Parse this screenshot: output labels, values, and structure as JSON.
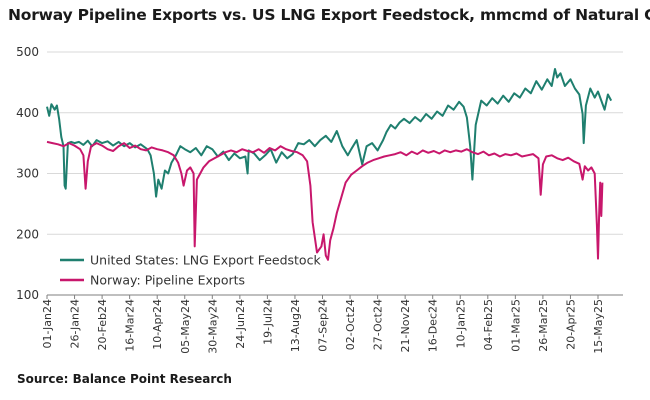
{
  "chart_data": {
    "type": "line",
    "title": "Norway Pipeline Exports vs. US LNG Export Feedstock, mmcmd of Natural Gas",
    "source": "Source: Balance Point Research",
    "xlabel": "",
    "ylabel": "",
    "ylim": [
      100,
      500
    ],
    "yticks": [
      "100",
      "200",
      "300",
      "400",
      "500"
    ],
    "x_range": [
      "2024-01-01",
      "2025-05-27"
    ],
    "xticks": [
      "01-Jan24",
      "26-Jan24",
      "20-Feb24",
      "16-Mar24",
      "10-Apr24",
      "05-May24",
      "30-May24",
      "24-Jun24",
      "19-Jul24",
      "13-Aug24",
      "07-Sep24",
      "02-Oct24",
      "27-Oct24",
      "21-Nov24",
      "16-Dec24",
      "10-Jan25",
      "04-Feb25",
      "01-Mar25",
      "26-Mar25",
      "20-Apr25",
      "15-May25"
    ],
    "grid": true,
    "legend_position": "bottom-left",
    "series": [
      {
        "name": "United States: LNG Export Feedstock",
        "color": "#1f7f6f",
        "points": [
          [
            "2024-01-01",
            410
          ],
          [
            "2024-01-03",
            395
          ],
          [
            "2024-01-05",
            414
          ],
          [
            "2024-01-08",
            405
          ],
          [
            "2024-01-10",
            412
          ],
          [
            "2024-01-12",
            390
          ],
          [
            "2024-01-14",
            360
          ],
          [
            "2024-01-16",
            345
          ],
          [
            "2024-01-17",
            280
          ],
          [
            "2024-01-18",
            275
          ],
          [
            "2024-01-20",
            350
          ],
          [
            "2024-01-23",
            352
          ],
          [
            "2024-01-26",
            350
          ],
          [
            "2024-01-30",
            352
          ],
          [
            "2024-02-03",
            347
          ],
          [
            "2024-02-07",
            354
          ],
          [
            "2024-02-11",
            345
          ],
          [
            "2024-02-15",
            355
          ],
          [
            "2024-02-20",
            350
          ],
          [
            "2024-02-25",
            353
          ],
          [
            "2024-03-01",
            346
          ],
          [
            "2024-03-06",
            352
          ],
          [
            "2024-03-11",
            345
          ],
          [
            "2024-03-16",
            350
          ],
          [
            "2024-03-21",
            343
          ],
          [
            "2024-03-26",
            348
          ],
          [
            "2024-04-01",
            340
          ],
          [
            "2024-04-04",
            330
          ],
          [
            "2024-04-07",
            300
          ],
          [
            "2024-04-09",
            262
          ],
          [
            "2024-04-11",
            290
          ],
          [
            "2024-04-14",
            275
          ],
          [
            "2024-04-17",
            305
          ],
          [
            "2024-04-20",
            300
          ],
          [
            "2024-04-23",
            318
          ],
          [
            "2024-04-27",
            330
          ],
          [
            "2024-05-01",
            345
          ],
          [
            "2024-05-05",
            340
          ],
          [
            "2024-05-10",
            335
          ],
          [
            "2024-05-15",
            342
          ],
          [
            "2024-05-20",
            330
          ],
          [
            "2024-05-25",
            345
          ],
          [
            "2024-05-30",
            340
          ],
          [
            "2024-06-04",
            328
          ],
          [
            "2024-06-09",
            336
          ],
          [
            "2024-06-14",
            322
          ],
          [
            "2024-06-19",
            333
          ],
          [
            "2024-06-24",
            325
          ],
          [
            "2024-06-29",
            328
          ],
          [
            "2024-07-01",
            300
          ],
          [
            "2024-07-02",
            338
          ],
          [
            "2024-07-07",
            333
          ],
          [
            "2024-07-12",
            322
          ],
          [
            "2024-07-17",
            330
          ],
          [
            "2024-07-22",
            340
          ],
          [
            "2024-07-27",
            318
          ],
          [
            "2024-08-01",
            335
          ],
          [
            "2024-08-06",
            325
          ],
          [
            "2024-08-11",
            332
          ],
          [
            "2024-08-16",
            350
          ],
          [
            "2024-08-21",
            348
          ],
          [
            "2024-08-26",
            355
          ],
          [
            "2024-08-31",
            345
          ],
          [
            "2024-09-05",
            355
          ],
          [
            "2024-09-10",
            362
          ],
          [
            "2024-09-15",
            352
          ],
          [
            "2024-09-20",
            370
          ],
          [
            "2024-09-25",
            345
          ],
          [
            "2024-09-30",
            330
          ],
          [
            "2024-10-03",
            340
          ],
          [
            "2024-10-08",
            355
          ],
          [
            "2024-10-13",
            315
          ],
          [
            "2024-10-17",
            345
          ],
          [
            "2024-10-22",
            350
          ],
          [
            "2024-10-27",
            338
          ],
          [
            "2024-11-01",
            355
          ],
          [
            "2024-11-04",
            368
          ],
          [
            "2024-11-08",
            380
          ],
          [
            "2024-11-12",
            374
          ],
          [
            "2024-11-16",
            384
          ],
          [
            "2024-11-20",
            390
          ],
          [
            "2024-11-25",
            383
          ],
          [
            "2024-11-30",
            393
          ],
          [
            "2024-12-05",
            386
          ],
          [
            "2024-12-10",
            398
          ],
          [
            "2024-12-15",
            390
          ],
          [
            "2024-12-20",
            402
          ],
          [
            "2024-12-25",
            395
          ],
          [
            "2024-12-30",
            412
          ],
          [
            "2025-01-04",
            405
          ],
          [
            "2025-01-09",
            418
          ],
          [
            "2025-01-13",
            410
          ],
          [
            "2025-01-16",
            392
          ],
          [
            "2025-01-19",
            345
          ],
          [
            "2025-01-21",
            290
          ],
          [
            "2025-01-24",
            380
          ],
          [
            "2025-01-29",
            420
          ],
          [
            "2025-02-03",
            412
          ],
          [
            "2025-02-08",
            424
          ],
          [
            "2025-02-13",
            415
          ],
          [
            "2025-02-18",
            428
          ],
          [
            "2025-02-23",
            418
          ],
          [
            "2025-02-28",
            432
          ],
          [
            "2025-03-05",
            425
          ],
          [
            "2025-03-10",
            440
          ],
          [
            "2025-03-15",
            432
          ],
          [
            "2025-03-20",
            452
          ],
          [
            "2025-03-25",
            438
          ],
          [
            "2025-03-30",
            455
          ],
          [
            "2025-04-03",
            444
          ],
          [
            "2025-04-06",
            472
          ],
          [
            "2025-04-08",
            458
          ],
          [
            "2025-04-11",
            465
          ],
          [
            "2025-04-15",
            444
          ],
          [
            "2025-04-20",
            455
          ],
          [
            "2025-04-24",
            440
          ],
          [
            "2025-04-28",
            430
          ],
          [
            "2025-05-01",
            398
          ],
          [
            "2025-05-02",
            350
          ],
          [
            "2025-05-04",
            412
          ],
          [
            "2025-05-08",
            440
          ],
          [
            "2025-05-12",
            425
          ],
          [
            "2025-05-15",
            435
          ],
          [
            "2025-05-18",
            420
          ],
          [
            "2025-05-21",
            405
          ],
          [
            "2025-05-24",
            430
          ],
          [
            "2025-05-27",
            420
          ]
        ]
      },
      {
        "name": "Norway: Pipeline Exports",
        "color": "#c8176c",
        "points": [
          [
            "2024-01-01",
            352
          ],
          [
            "2024-01-06",
            350
          ],
          [
            "2024-01-11",
            348
          ],
          [
            "2024-01-16",
            345
          ],
          [
            "2024-01-21",
            350
          ],
          [
            "2024-01-26",
            346
          ],
          [
            "2024-01-31",
            340
          ],
          [
            "2024-02-03",
            330
          ],
          [
            "2024-02-05",
            275
          ],
          [
            "2024-02-07",
            320
          ],
          [
            "2024-02-10",
            345
          ],
          [
            "2024-02-15",
            350
          ],
          [
            "2024-02-20",
            346
          ],
          [
            "2024-02-25",
            340
          ],
          [
            "2024-03-01",
            337
          ],
          [
            "2024-03-06",
            345
          ],
          [
            "2024-03-11",
            350
          ],
          [
            "2024-03-16",
            342
          ],
          [
            "2024-03-21",
            346
          ],
          [
            "2024-03-26",
            340
          ],
          [
            "2024-03-31",
            338
          ],
          [
            "2024-04-05",
            343
          ],
          [
            "2024-04-10",
            340
          ],
          [
            "2024-04-15",
            338
          ],
          [
            "2024-04-20",
            335
          ],
          [
            "2024-04-25",
            330
          ],
          [
            "2024-04-29",
            318
          ],
          [
            "2024-05-02",
            300
          ],
          [
            "2024-05-04",
            280
          ],
          [
            "2024-05-07",
            305
          ],
          [
            "2024-05-10",
            310
          ],
          [
            "2024-05-13",
            300
          ],
          [
            "2024-05-14",
            180
          ],
          [
            "2024-05-16",
            290
          ],
          [
            "2024-05-19",
            300
          ],
          [
            "2024-05-22",
            310
          ],
          [
            "2024-05-27",
            320
          ],
          [
            "2024-06-01",
            325
          ],
          [
            "2024-06-06",
            330
          ],
          [
            "2024-06-11",
            335
          ],
          [
            "2024-06-16",
            338
          ],
          [
            "2024-06-21",
            335
          ],
          [
            "2024-06-26",
            340
          ],
          [
            "2024-07-01",
            337
          ],
          [
            "2024-07-06",
            335
          ],
          [
            "2024-07-11",
            340
          ],
          [
            "2024-07-16",
            334
          ],
          [
            "2024-07-21",
            342
          ],
          [
            "2024-07-26",
            338
          ],
          [
            "2024-07-31",
            345
          ],
          [
            "2024-08-05",
            340
          ],
          [
            "2024-08-10",
            337
          ],
          [
            "2024-08-15",
            335
          ],
          [
            "2024-08-20",
            330
          ],
          [
            "2024-08-24",
            320
          ],
          [
            "2024-08-27",
            280
          ],
          [
            "2024-08-29",
            220
          ],
          [
            "2024-09-02",
            170
          ],
          [
            "2024-09-06",
            180
          ],
          [
            "2024-09-08",
            200
          ],
          [
            "2024-09-10",
            165
          ],
          [
            "2024-09-12",
            158
          ],
          [
            "2024-09-14",
            190
          ],
          [
            "2024-09-17",
            210
          ],
          [
            "2024-09-20",
            235
          ],
          [
            "2024-09-24",
            260
          ],
          [
            "2024-09-28",
            285
          ],
          [
            "2024-10-03",
            298
          ],
          [
            "2024-10-08",
            305
          ],
          [
            "2024-10-13",
            312
          ],
          [
            "2024-10-18",
            318
          ],
          [
            "2024-10-23",
            322
          ],
          [
            "2024-10-28",
            325
          ],
          [
            "2024-11-02",
            328
          ],
          [
            "2024-11-07",
            330
          ],
          [
            "2024-11-12",
            332
          ],
          [
            "2024-11-17",
            335
          ],
          [
            "2024-11-22",
            330
          ],
          [
            "2024-11-27",
            336
          ],
          [
            "2024-12-02",
            332
          ],
          [
            "2024-12-07",
            338
          ],
          [
            "2024-12-12",
            334
          ],
          [
            "2024-12-17",
            337
          ],
          [
            "2024-12-22",
            333
          ],
          [
            "2024-12-27",
            338
          ],
          [
            "2025-01-01",
            335
          ],
          [
            "2025-01-06",
            338
          ],
          [
            "2025-01-11",
            336
          ],
          [
            "2025-01-16",
            340
          ],
          [
            "2025-01-21",
            335
          ],
          [
            "2025-01-26",
            332
          ],
          [
            "2025-01-31",
            336
          ],
          [
            "2025-02-05",
            330
          ],
          [
            "2025-02-10",
            333
          ],
          [
            "2025-02-15",
            328
          ],
          [
            "2025-02-20",
            332
          ],
          [
            "2025-02-25",
            330
          ],
          [
            "2025-03-02",
            333
          ],
          [
            "2025-03-07",
            328
          ],
          [
            "2025-03-12",
            330
          ],
          [
            "2025-03-17",
            332
          ],
          [
            "2025-03-22",
            325
          ],
          [
            "2025-03-24",
            265
          ],
          [
            "2025-03-26",
            315
          ],
          [
            "2025-03-29",
            328
          ],
          [
            "2025-04-03",
            330
          ],
          [
            "2025-04-08",
            325
          ],
          [
            "2025-04-13",
            322
          ],
          [
            "2025-04-18",
            326
          ],
          [
            "2025-04-23",
            320
          ],
          [
            "2025-04-28",
            316
          ],
          [
            "2025-05-01",
            290
          ],
          [
            "2025-05-03",
            312
          ],
          [
            "2025-05-06",
            305
          ],
          [
            "2025-05-09",
            310
          ],
          [
            "2025-05-12",
            300
          ],
          [
            "2025-05-14",
            215
          ],
          [
            "2025-05-15",
            160
          ],
          [
            "2025-05-16",
            230
          ],
          [
            "2025-05-17",
            285
          ],
          [
            "2025-05-18",
            230
          ],
          [
            "2025-05-19",
            285
          ]
        ]
      }
    ]
  }
}
